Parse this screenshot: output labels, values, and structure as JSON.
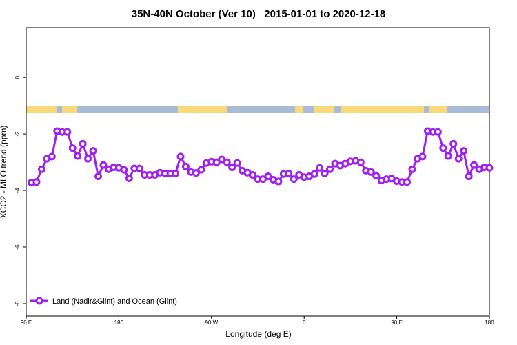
{
  "chart_data": {
    "type": "line",
    "title": "35N-40N October (Ver 10)   2015-01-01 to 2020-12-18",
    "x_label": "Longitude (deg E)",
    "y_label": "XCO2 - MLO trend (ppm)",
    "xlim": [
      90,
      540
    ],
    "ylim": [
      -8.44,
      1.76
    ],
    "xticks": [
      {
        "value": 90,
        "label": "90 E"
      },
      180,
      {
        "value": 270,
        "label": "90 W"
      },
      {
        "value": 360,
        "label": "0"
      },
      {
        "value": 450,
        "label": "90 E"
      },
      {
        "value": 540,
        "label": "180"
      }
    ],
    "yticks": [
      0,
      -2,
      -4,
      -6,
      -8
    ],
    "legend": "bottom-left",
    "x": [
      95,
      100,
      105,
      110,
      115,
      120,
      125,
      130,
      135,
      140,
      145,
      150,
      155,
      160,
      165,
      170,
      175,
      180,
      185,
      190,
      195,
      200,
      205,
      210,
      215,
      220,
      225,
      230,
      235,
      240,
      245,
      250,
      255,
      260,
      265,
      270,
      275,
      280,
      285,
      290,
      295,
      300,
      305,
      310,
      315,
      320,
      325,
      330,
      335,
      340,
      345,
      350,
      355,
      360,
      365,
      370,
      375,
      380,
      385,
      390,
      395,
      400,
      405,
      410,
      415,
      420,
      425,
      430,
      435,
      440,
      445,
      450,
      455,
      460,
      465,
      470,
      475,
      480,
      485,
      490,
      495,
      500,
      505,
      510,
      515,
      520,
      525,
      530,
      535,
      540
    ],
    "series": [
      {
        "name": "Land (Nadir&Glint) and Ocean (Glint)",
        "color": "#a020f0",
        "values": [
          -3.72,
          -3.7,
          -3.25,
          -2.88,
          -2.8,
          -1.9,
          -1.93,
          -1.93,
          -2.5,
          -2.78,
          -2.35,
          -2.88,
          -2.6,
          -3.5,
          -3.1,
          -3.25,
          -3.18,
          -3.2,
          -3.27,
          -3.57,
          -3.22,
          -3.22,
          -3.45,
          -3.45,
          -3.45,
          -3.37,
          -3.4,
          -3.4,
          -3.4,
          -2.8,
          -3.15,
          -3.35,
          -3.38,
          -3.27,
          -3.03,
          -2.98,
          -3.0,
          -2.9,
          -3.0,
          -3.18,
          -3.03,
          -3.3,
          -3.37,
          -3.45,
          -3.6,
          -3.6,
          -3.5,
          -3.62,
          -3.68,
          -3.42,
          -3.4,
          -3.6,
          -3.45,
          -3.53,
          -3.5,
          -3.42,
          -3.2,
          -3.4,
          -3.25,
          -3.05,
          -3.12,
          -3.05,
          -2.97,
          -2.95,
          -3.0,
          -3.3,
          -3.35,
          -3.48,
          -3.65,
          -3.6,
          -3.58,
          -3.67,
          -3.7,
          -3.7,
          -3.25,
          -2.88,
          -2.8,
          -1.9,
          -1.93,
          -1.93,
          -2.5,
          -2.78,
          -2.35,
          -2.88,
          -2.6,
          -3.5,
          -3.1,
          -3.25,
          -3.18,
          -3.2
        ]
      }
    ]
  }
}
